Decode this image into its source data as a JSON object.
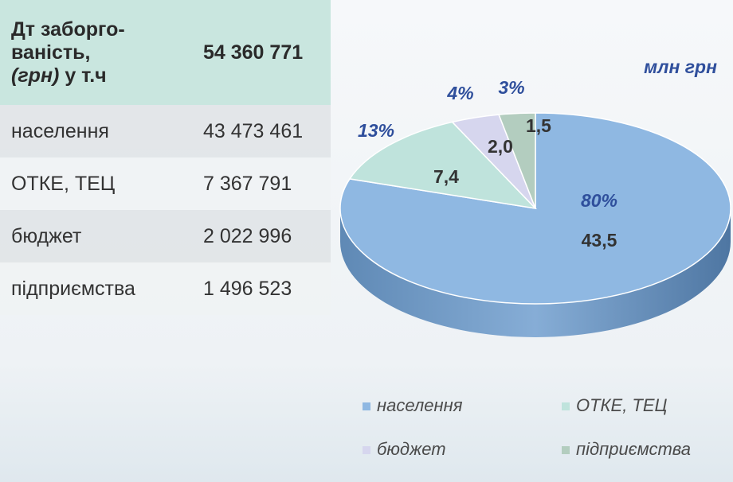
{
  "table": {
    "header": {
      "lines": [
        "Дт заборго-",
        "ваність,"
      ],
      "unit": "(грн)",
      "suffix": "у т.ч",
      "total": "54 360 771"
    },
    "rows": [
      [
        "населення",
        "43 473 461"
      ],
      [
        "ОТКЕ, ТЕЦ",
        "7 367 791"
      ],
      [
        "бюджет",
        "2 022 996"
      ],
      [
        "підприємства",
        "1 496 523"
      ]
    ]
  },
  "chart_data": {
    "type": "pie",
    "unit_label": "млн грн",
    "categories": [
      "населення",
      "ОТКЕ, ТЕЦ",
      "бюджет",
      "підприємства"
    ],
    "values": [
      80,
      13,
      4,
      3
    ],
    "value_labels": [
      "80%",
      "13%",
      "4%",
      "3%"
    ],
    "amounts": [
      43.5,
      7.4,
      2.0,
      1.5
    ],
    "amount_labels": [
      "43,5",
      "7,4",
      "2,0",
      "1,5"
    ],
    "colors": [
      "#8fb8e2",
      "#bfe3dc",
      "#d6d6ee",
      "#b3cdbf"
    ]
  }
}
